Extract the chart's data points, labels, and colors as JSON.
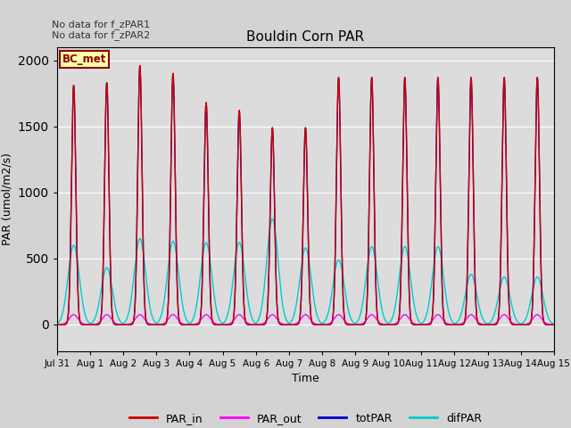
{
  "title": "Bouldin Corn PAR",
  "xlabel": "Time",
  "ylabel": "PAR (umol/m2/s)",
  "ylim": [
    -200,
    2100
  ],
  "annotation1": "No data for f_zPAR1",
  "annotation2": "No data for f_zPAR2",
  "legend_box_label": "BC_met",
  "legend_entries": [
    "PAR_in",
    "PAR_out",
    "totPAR",
    "difPAR"
  ],
  "legend_colors": [
    "#cc0000",
    "#ff00ff",
    "#0000cc",
    "#00cccc"
  ],
  "num_days": 15,
  "totPAR_peaks": [
    1810,
    1830,
    1960,
    1900,
    1680,
    1620,
    1490,
    1490,
    1870,
    1870,
    1870,
    1870,
    1870,
    1870,
    1870
  ],
  "PARin_peaks": [
    1810,
    1830,
    1960,
    1900,
    1680,
    1620,
    1490,
    1490,
    1870,
    1870,
    1870,
    1870,
    1870,
    1870,
    1870
  ],
  "PARout_peaks": [
    75,
    75,
    75,
    75,
    75,
    75,
    75,
    75,
    75,
    75,
    75,
    75,
    75,
    75,
    75
  ],
  "difPAR_peaks": [
    600,
    430,
    650,
    630,
    620,
    620,
    800,
    580,
    490,
    590,
    590,
    590,
    380,
    360,
    360
  ],
  "xtick_labels": [
    "Jul 31",
    "Aug 1",
    "Aug 2",
    "Aug 3",
    "Aug 4",
    "Aug 5",
    "Aug 6",
    "Aug 7",
    "Aug 8",
    "Aug 9",
    "Aug 10",
    "Aug 11",
    "Aug 12",
    "Aug 13",
    "Aug 14",
    "Aug 15"
  ],
  "xtick_positions": [
    0,
    1,
    2,
    3,
    4,
    5,
    6,
    7,
    8,
    9,
    10,
    11,
    12,
    13,
    14,
    15
  ],
  "fig_bg": "#d3d3d3",
  "ax_bg": "#dcdcdc"
}
